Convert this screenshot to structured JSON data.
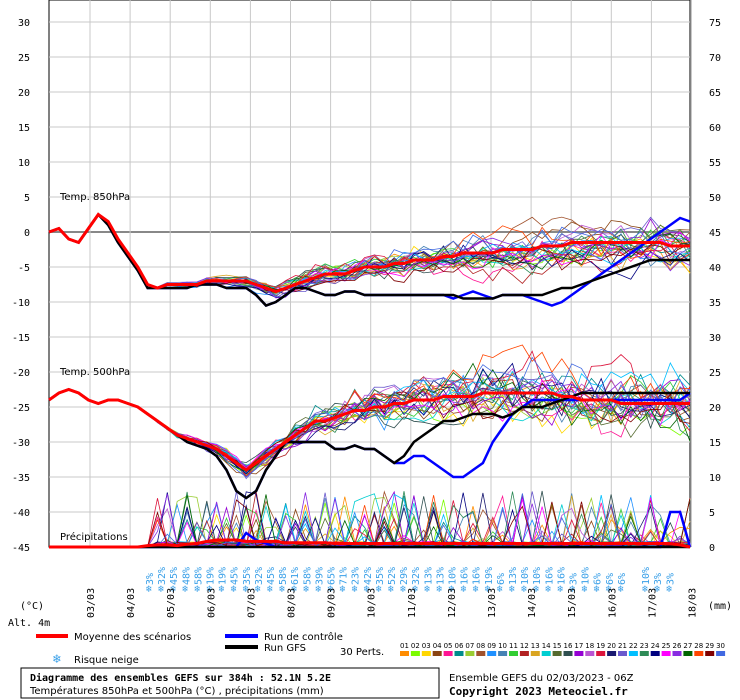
{
  "chart_data": {
    "type": "line",
    "title": "Diagramme des ensembles GEFS sur 384h : 52.1N 5.2E",
    "subtitle": "Températures 850hPa et 500hPa (°C) , précipitations (mm)",
    "ensemble_run": "Ensemble GEFS du 02/03/2023 - 06Z",
    "copyright": "Copyright 2023 Meteociel.fr",
    "left_unit": "(°C)",
    "right_unit": "(mm)",
    "altitude": "Alt. 4m",
    "left_ticks": [
      "30",
      "25",
      "20",
      "15",
      "10",
      "5",
      "0",
      "-5",
      "-10",
      "-15",
      "-20",
      "-25",
      "-30",
      "-35",
      "-40",
      "-45"
    ],
    "right_ticks": [
      "75",
      "70",
      "65",
      "60",
      "55",
      "50",
      "45",
      "40",
      "35",
      "30",
      "25",
      "20",
      "15",
      "10",
      "5",
      "0"
    ],
    "x_labels": [
      "03/03",
      "04/03",
      "05/03",
      "06/03",
      "07/03",
      "08/03",
      "09/03",
      "10/03",
      "11/03",
      "12/03",
      "13/03",
      "14/03",
      "15/03",
      "16/03",
      "17/03",
      "18/03"
    ],
    "panel_labels": {
      "t850": "Temp. 850hPa",
      "t500": "Temp. 500hPa",
      "precip": "Précipitations"
    },
    "legend": {
      "mean": "Moyenne des scénarios",
      "control": "Run de contrôle",
      "gfs": "Run GFS",
      "snow": "Risque neige",
      "perts": "30 Perts.",
      "members": [
        "01",
        "02",
        "03",
        "04",
        "05",
        "06",
        "07",
        "08",
        "09",
        "10",
        "11",
        "12",
        "13",
        "14",
        "15",
        "16",
        "17",
        "18",
        "19",
        "20",
        "21",
        "22",
        "23",
        "24",
        "25",
        "26",
        "27",
        "28",
        "29",
        "30"
      ],
      "member_colors": [
        "#ff8c00",
        "#7cfc00",
        "#ffd700",
        "#8b4513",
        "#ff1493",
        "#008b8b",
        "#9acd32",
        "#a0522d",
        "#1e90ff",
        "#4682b4",
        "#32cd32",
        "#b22222",
        "#daa520",
        "#00ced1",
        "#556b2f",
        "#2f4f4f",
        "#9400d3",
        "#ba55d3",
        "#dc143c",
        "#191970",
        "#6a5acd",
        "#00bfff",
        "#2e8b57",
        "#000080",
        "#ff00ff",
        "#8a2be2",
        "#006400",
        "#ff4500",
        "#800000",
        "#4169e1"
      ]
    },
    "snow_risk": [
      "3%",
      "32%",
      "45%",
      "48%",
      "58%",
      "19%",
      "19%",
      "45%",
      "35%",
      "32%",
      "45%",
      "58%",
      "61%",
      "58%",
      "39%",
      "65%",
      "71%",
      "23%",
      "42%",
      "35%",
      "52%",
      "29%",
      "32%",
      "13%",
      "13%",
      "10%",
      "16%",
      "16%",
      "19%",
      "6%",
      "13%",
      "10%",
      "10%",
      "16%",
      "16%",
      "3%",
      "10%",
      "6%",
      "6%",
      "6%",
      "",
      "10%",
      "3%",
      "3%"
    ],
    "series": [
      {
        "name": "Moyenne des scénarios",
        "color": "#ff0000",
        "t850": [
          0,
          0.5,
          -1,
          -1.5,
          0.5,
          2.5,
          1.5,
          -1,
          -3,
          -5,
          -7.5,
          -8,
          -7.5,
          -7.5,
          -7.5,
          -7.5,
          -7,
          -7,
          -7,
          -7,
          -7,
          -7.5,
          -8,
          -8.5,
          -8,
          -7.5,
          -7,
          -6.5,
          -6,
          -6,
          -6,
          -5.5,
          -5,
          -5,
          -5,
          -4.5,
          -4.5,
          -4,
          -4,
          -4,
          -3.5,
          -3.5,
          -3,
          -3,
          -3,
          -3,
          -2.5,
          -2.5,
          -2.5,
          -2.5,
          -2,
          -2,
          -2,
          -1.5,
          -1.5,
          -1.5,
          -1.5,
          -1.5,
          -1.5,
          -1.5,
          -1.5,
          -1.5,
          -1.5,
          -2,
          -2,
          -2
        ],
        "t500": [
          -24,
          -23,
          -22.5,
          -23,
          -24,
          -24.5,
          -24,
          -24,
          -24.5,
          -25,
          -26,
          -27,
          -28,
          -29,
          -29.5,
          -30,
          -30.5,
          -31,
          -32,
          -33,
          -34,
          -33,
          -32,
          -31,
          -30,
          -29,
          -28,
          -27,
          -27,
          -26.5,
          -26,
          -25.5,
          -25.5,
          -25,
          -25,
          -24.5,
          -24.5,
          -24,
          -24,
          -24,
          -23.5,
          -23.5,
          -23.5,
          -23.5,
          -23,
          -23,
          -23,
          -23,
          -23,
          -23,
          -23,
          -23,
          -23.5,
          -23.5,
          -24,
          -24,
          -24,
          -24,
          -24.5,
          -24.5,
          -24.5,
          -24.5,
          -24.5,
          -24.5,
          -24.5,
          -24.5
        ],
        "precip": [
          0,
          0,
          0,
          0,
          0,
          0,
          0,
          0,
          0,
          0,
          0.2,
          0.3,
          0.3,
          0.2,
          0.4,
          0.5,
          0.8,
          1,
          1,
          1,
          0.8,
          0.8,
          0.8,
          0.8,
          0.6,
          0.6,
          0.6,
          0.6,
          0.6,
          0.5,
          0.5,
          0.5,
          0.5,
          0.5,
          0.5,
          0.5,
          0.5,
          0.5,
          0.5,
          0.5,
          0.5,
          0.5,
          0.5,
          0.5,
          0.5,
          0.5,
          0.5,
          0.5,
          0.5,
          0.5,
          0.5,
          0.5,
          0.5,
          0.5,
          0.5,
          0.5,
          0.5,
          0.5,
          0.5,
          0.5,
          0.5,
          0.5,
          0.5,
          0.5,
          0.3,
          0
        ]
      },
      {
        "name": "Run de contrôle",
        "color": "#0000ff",
        "t850": [
          0,
          0.5,
          -1,
          -1.5,
          0.5,
          2.5,
          1,
          -1.5,
          -3.5,
          -5.5,
          -8,
          -8,
          -8,
          -8,
          -8,
          -7.5,
          -7.5,
          -7.5,
          -8,
          -8,
          -8,
          -9,
          -10.5,
          -10,
          -9,
          -8,
          -8,
          -8.5,
          -9,
          -9,
          -8.5,
          -8.5,
          -9,
          -9,
          -9,
          -9,
          -9,
          -9,
          -9,
          -9,
          -9,
          -9.5,
          -9,
          -8.5,
          -9,
          -9.5,
          -9,
          -9,
          -9,
          -9.5,
          -10,
          -10.5,
          -10,
          -9,
          -8,
          -7,
          -6,
          -5,
          -4,
          -3,
          -2,
          -1,
          0,
          1,
          2,
          1.5
        ],
        "t500": [
          -24,
          -23,
          -22.5,
          -23,
          -24,
          -24.5,
          -24,
          -24,
          -24.5,
          -25,
          -26,
          -27,
          -28,
          -29,
          -30,
          -30.5,
          -31,
          -32,
          -34,
          -37,
          -38,
          -37,
          -34,
          -32,
          -30,
          -30,
          -30,
          -30,
          -30,
          -31,
          -31,
          -30.5,
          -31,
          -31,
          -32,
          -33,
          -33,
          -32,
          -32,
          -33,
          -34,
          -35,
          -35,
          -34,
          -33,
          -30,
          -28,
          -26,
          -25,
          -24,
          -24,
          -24,
          -24,
          -24,
          -24,
          -24,
          -24,
          -24,
          -24,
          -24,
          -24,
          -24,
          -24,
          -24,
          -24,
          -23
        ],
        "precip": [
          0,
          0,
          0,
          0,
          0,
          0,
          0,
          0,
          0,
          0,
          0,
          0,
          0,
          0,
          0,
          0,
          0,
          0,
          0,
          0,
          2,
          1,
          0.5,
          0,
          0,
          0,
          0,
          0,
          0,
          0,
          0,
          0,
          0,
          0,
          0,
          0,
          0,
          0,
          0,
          0,
          0,
          0,
          0,
          0,
          0,
          0,
          0,
          0,
          0,
          0,
          0,
          0,
          0,
          0,
          0,
          0,
          0,
          0,
          0,
          0,
          0,
          0,
          0,
          5,
          5,
          0
        ]
      },
      {
        "name": "Run GFS",
        "color": "#000000",
        "t850": [
          0,
          0.5,
          -1,
          -1.5,
          0.5,
          2.5,
          1,
          -1.5,
          -3.5,
          -5.5,
          -8,
          -8,
          -8,
          -8,
          -8,
          -7.5,
          -7.5,
          -7.5,
          -8,
          -8,
          -8,
          -9,
          -10.5,
          -10,
          -9,
          -8,
          -8,
          -8.5,
          -9,
          -9,
          -8.5,
          -8.5,
          -9,
          -9,
          -9,
          -9,
          -9,
          -9,
          -9,
          -9,
          -9,
          -9,
          -9.5,
          -9.5,
          -9.5,
          -9.5,
          -9,
          -9,
          -9,
          -9,
          -9,
          -8.5,
          -8,
          -8,
          -7.5,
          -7,
          -6.5,
          -6,
          -5.5,
          -5,
          -4.5,
          -4,
          -4,
          -4,
          -4,
          -4
        ],
        "t500": [
          -24,
          -23,
          -22.5,
          -23,
          -24,
          -24.5,
          -24,
          -24,
          -24.5,
          -25,
          -26,
          -27,
          -28,
          -29,
          -30,
          -30.5,
          -31,
          -32,
          -34,
          -37,
          -38,
          -37,
          -34,
          -32,
          -30,
          -30,
          -30,
          -30,
          -30,
          -31,
          -31,
          -30.5,
          -31,
          -31,
          -32,
          -33,
          -32,
          -30,
          -29,
          -28,
          -27,
          -27,
          -26.5,
          -26,
          -26,
          -26,
          -26.5,
          -26,
          -25,
          -25,
          -25,
          -24.5,
          -24,
          -23.5,
          -23,
          -23,
          -23,
          -23,
          -23,
          -23,
          -23,
          -23,
          -23,
          -23,
          -23,
          -23
        ],
        "precip": [
          0,
          0,
          0,
          0,
          0,
          0,
          0,
          0,
          0,
          0,
          0,
          0,
          0,
          0,
          0,
          0,
          0,
          0,
          0,
          0,
          0,
          0,
          0,
          0,
          0,
          0,
          0,
          0,
          0,
          0,
          0,
          0,
          0,
          0,
          0,
          0,
          0,
          0,
          0,
          0,
          0,
          0,
          0,
          0,
          0,
          0,
          0,
          0,
          0,
          0,
          0,
          0,
          0,
          0,
          0,
          0,
          0,
          0,
          0,
          0,
          0,
          0,
          0,
          0,
          0,
          0
        ]
      }
    ]
  }
}
